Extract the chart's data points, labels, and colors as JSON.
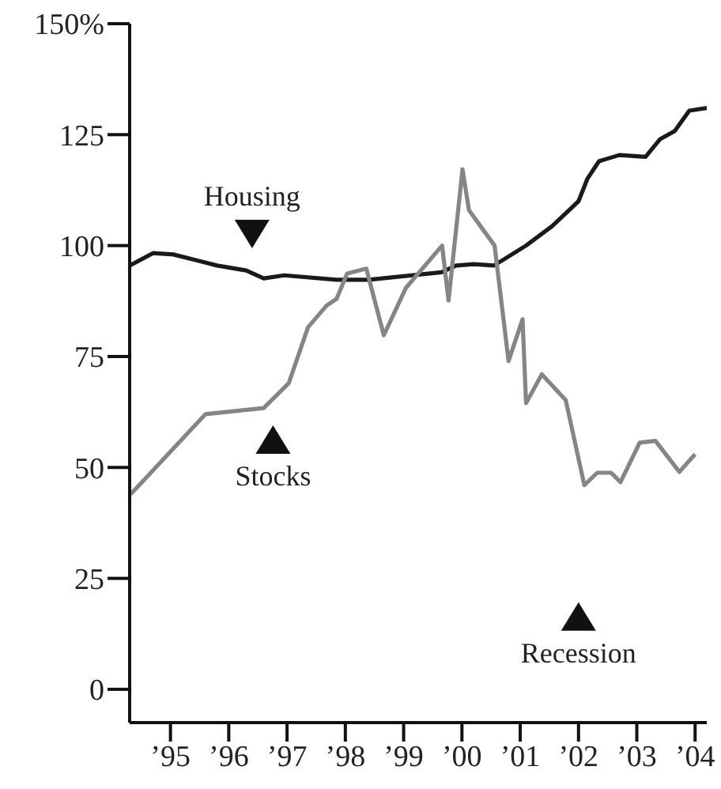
{
  "chart_data": {
    "type": "line",
    "xlim": [
      1994.3,
      2004.2
    ],
    "ylim": [
      -7.5,
      150
    ],
    "xticks": [
      {
        "value": 1995,
        "label": "’95"
      },
      {
        "value": 1996,
        "label": "’96"
      },
      {
        "value": 1997,
        "label": "’97"
      },
      {
        "value": 1998,
        "label": "’98"
      },
      {
        "value": 1999,
        "label": "’99"
      },
      {
        "value": 2000,
        "label": "’00"
      },
      {
        "value": 2001,
        "label": "’01"
      },
      {
        "value": 2002,
        "label": "’02"
      },
      {
        "value": 2003,
        "label": "’03"
      },
      {
        "value": 2004,
        "label": "’04"
      }
    ],
    "yticks": [
      0,
      25,
      50,
      75,
      100,
      125,
      {
        "value": 150,
        "label": "150%"
      }
    ],
    "grid": false,
    "legend": false,
    "marker": "none",
    "line_style": "solid",
    "series": [
      {
        "color": "#1a1a1a",
        "x": [
          1994.3,
          1994.7,
          1995.05,
          1995.8,
          1996.3,
          1996.6,
          1996.95,
          1997.85,
          1998.4,
          1999.65,
          1999.9,
          2000.2,
          2000.55,
          2001.1,
          2001.55,
          2002.0,
          2002.15,
          2002.35,
          2002.7,
          2003.15,
          2003.4,
          2003.65,
          2003.9,
          2004.2
        ],
        "values": [
          95.5,
          98.3,
          98,
          95.5,
          94.4,
          92.6,
          93.3,
          92.3,
          92.3,
          94,
          95.5,
          95.8,
          95.5,
          100,
          104.4,
          110,
          115,
          119,
          120.4,
          120,
          124,
          125.8,
          130.4,
          131
        ]
      },
      {
        "color": "#858585",
        "x": [
          1994.32,
          1995.6,
          1996.6,
          1997.03,
          1997.36,
          1997.68,
          1997.85,
          1998.03,
          1998.36,
          1998.66,
          1999.04,
          1999.66,
          1999.77,
          2000.01,
          2000.12,
          2000.56,
          2000.8,
          2001.04,
          2001.1,
          2001.37,
          2001.78,
          2002.1,
          2002.32,
          2002.56,
          2002.72,
          2003.05,
          2003.32,
          2003.73,
          2004.0
        ],
        "values": [
          44,
          62,
          63.4,
          69,
          81.6,
          86.5,
          88,
          93.7,
          94.8,
          79.8,
          90.5,
          100,
          87.6,
          117.2,
          108,
          100,
          74,
          83.4,
          64.5,
          71,
          65.2,
          46,
          48.8,
          48.8,
          46.7,
          55.6,
          56,
          49,
          53
        ]
      }
    ],
    "annotations": [
      {
        "text": "Housing",
        "x": 1996.4,
        "y": 102.6
      },
      {
        "text": "Stocks",
        "x": 1996.76,
        "y": 56.3
      },
      {
        "text": "Recession",
        "x": 2002.0,
        "y": 16.4
      }
    ]
  }
}
